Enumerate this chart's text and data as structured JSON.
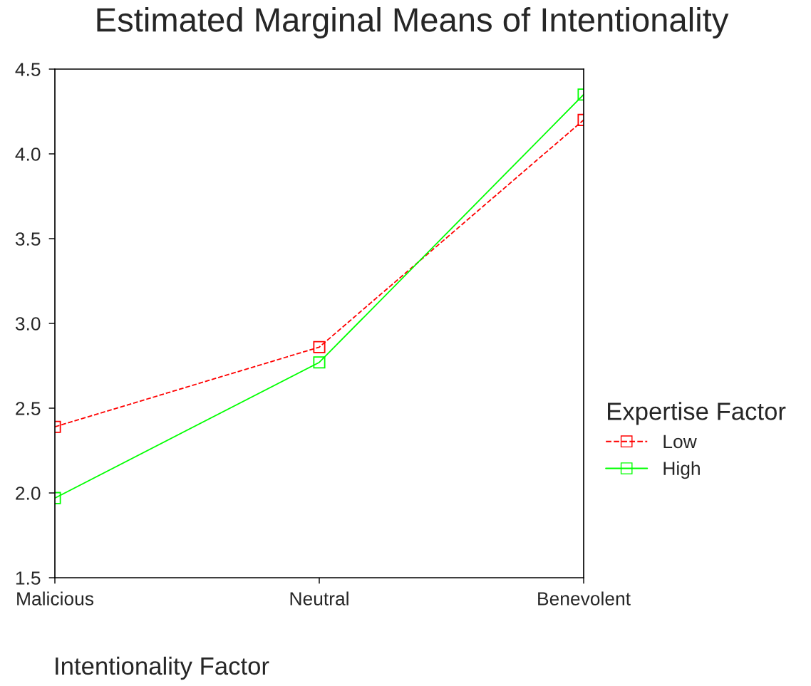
{
  "chart_data": {
    "type": "line",
    "title": "Estimated Marginal Means of Intentionality",
    "xlabel": "Intentionality Factor",
    "legend_title": "Expertise Factor",
    "categories": [
      "Malicious",
      "Neutral",
      "Benevolent"
    ],
    "series": [
      {
        "name": "Low",
        "color": "#ff0000",
        "values": [
          2.39,
          2.86,
          4.2
        ],
        "line_style": "dashed"
      },
      {
        "name": "High",
        "color": "#00ff00",
        "values": [
          1.97,
          2.77,
          4.35
        ],
        "line_style": "solid"
      }
    ],
    "ylim": [
      1.5,
      4.5
    ],
    "yticks": [
      1.5,
      {
        "value": 2,
        "label": "2.0"
      },
      2.5,
      {
        "value": 3,
        "label": "3.0"
      },
      3.5,
      {
        "value": 4,
        "label": "4.0"
      },
      4.5
    ],
    "marker": "square",
    "legend": "right",
    "grid": false
  }
}
